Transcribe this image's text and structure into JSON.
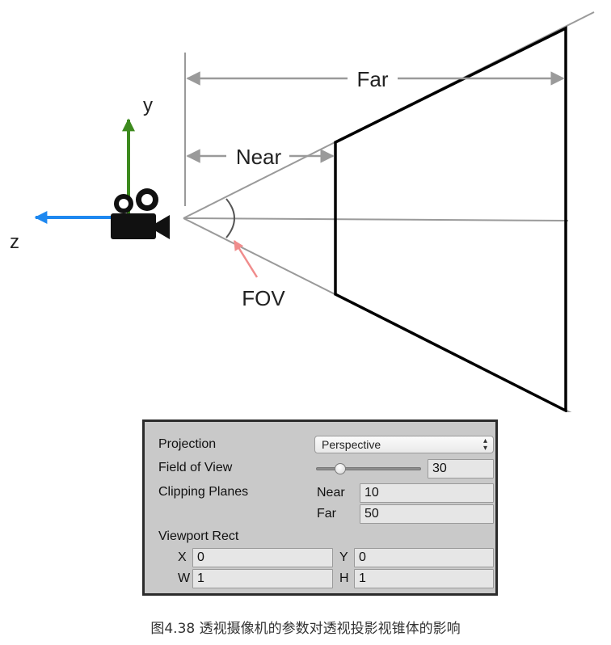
{
  "diagram": {
    "labels": {
      "far": "Far",
      "near": "Near",
      "fov": "FOV",
      "y_axis": "y",
      "z_axis": "z"
    },
    "colors": {
      "frustum_lines": "#9a9a9a",
      "planes": "#000000",
      "y_axis": "#3d8a1e",
      "z_axis": "#1e88f0",
      "fov_arrow": "#f08c8c"
    },
    "icons": [
      "video-camera-icon"
    ]
  },
  "inspector": {
    "projection": {
      "label": "Projection",
      "value": "Perspective"
    },
    "field_of_view": {
      "label": "Field of View",
      "value": "30",
      "slider_fraction": 0.2
    },
    "clipping_planes": {
      "label": "Clipping Planes",
      "near_label": "Near",
      "near_value": "10",
      "far_label": "Far",
      "far_value": "50"
    },
    "viewport_rect": {
      "label": "Viewport Rect",
      "x_label": "X",
      "x_value": "0",
      "y_label": "Y",
      "y_value": "0",
      "w_label": "W",
      "w_value": "1",
      "h_label": "H",
      "h_value": "1"
    }
  },
  "caption": "图4.38 透视摄像机的参数对透视投影视锥体的影响"
}
